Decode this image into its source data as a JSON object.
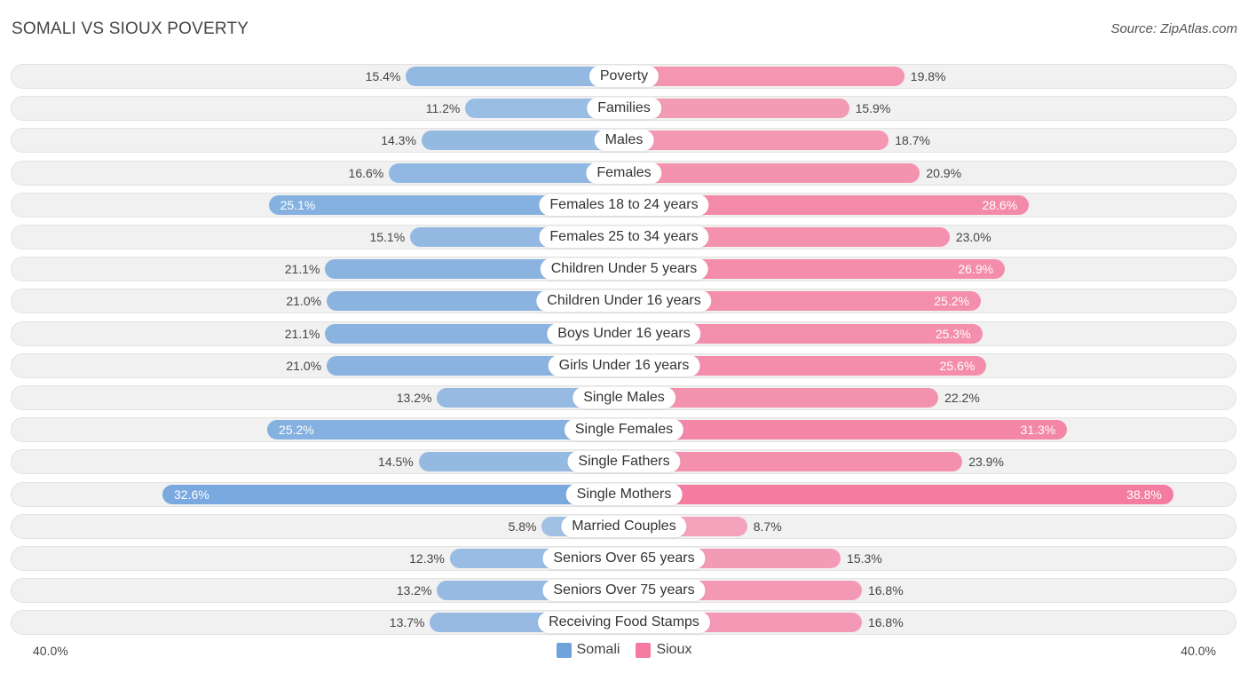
{
  "header": {
    "title": "SOMALI VS SIOUX POVERTY",
    "source": "Source: ZipAtlas.com"
  },
  "colors": {
    "somali": "#6fa3dc",
    "sioux": "#f47a9f"
  },
  "chart_data": {
    "type": "bar",
    "orientation": "horizontal-diverging",
    "title": "SOMALI VS SIOUX POVERTY",
    "axis": {
      "left_label": "40.0%",
      "right_label": "40.0%",
      "max": 40.0
    },
    "legend": [
      {
        "name": "Somali",
        "color": "#6fa3dc"
      },
      {
        "name": "Sioux",
        "color": "#f47a9f"
      }
    ],
    "categories": [
      "Poverty",
      "Families",
      "Males",
      "Females",
      "Females 18 to 24 years",
      "Females 25 to 34 years",
      "Children Under 5 years",
      "Children Under 16 years",
      "Boys Under 16 years",
      "Girls Under 16 years",
      "Single Males",
      "Single Females",
      "Single Fathers",
      "Single Mothers",
      "Married Couples",
      "Seniors Over 65 years",
      "Seniors Over 75 years",
      "Receiving Food Stamps"
    ],
    "series": [
      {
        "name": "Somali",
        "values": [
          15.4,
          11.2,
          14.3,
          16.6,
          25.1,
          15.1,
          21.1,
          21.0,
          21.1,
          21.0,
          13.2,
          25.2,
          14.5,
          32.6,
          5.8,
          12.3,
          13.2,
          13.7
        ],
        "labels": [
          "15.4%",
          "11.2%",
          "14.3%",
          "16.6%",
          "25.1%",
          "15.1%",
          "21.1%",
          "21.0%",
          "21.1%",
          "21.0%",
          "13.2%",
          "25.2%",
          "14.5%",
          "32.6%",
          "5.8%",
          "12.3%",
          "13.2%",
          "13.7%"
        ]
      },
      {
        "name": "Sioux",
        "values": [
          19.8,
          15.9,
          18.7,
          20.9,
          28.6,
          23.0,
          26.9,
          25.2,
          25.3,
          25.6,
          22.2,
          31.3,
          23.9,
          38.8,
          8.7,
          15.3,
          16.8,
          16.8
        ],
        "labels": [
          "19.8%",
          "15.9%",
          "18.7%",
          "20.9%",
          "28.6%",
          "23.0%",
          "26.9%",
          "25.2%",
          "25.3%",
          "25.6%",
          "22.2%",
          "31.3%",
          "23.9%",
          "38.8%",
          "8.7%",
          "15.3%",
          "16.8%",
          "16.8%"
        ]
      }
    ]
  }
}
